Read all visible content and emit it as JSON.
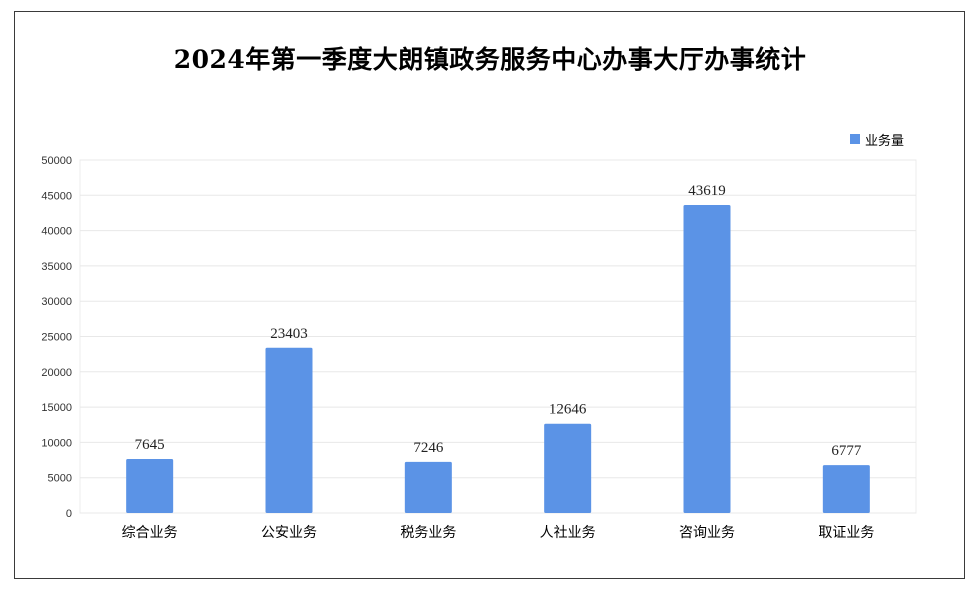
{
  "title": "2024年第一季度大朗镇政务服务中心办事大厅办事统计",
  "legend_label": "业务量",
  "colors": {
    "bar": "#5b93e6",
    "grid": "#e8e8e8",
    "frame": "#3a3a3a"
  },
  "chart_data": {
    "type": "bar",
    "title": "2024年第一季度大朗镇政务服务中心办事大厅办事统计",
    "categories": [
      "综合业务",
      "公安业务",
      "税务业务",
      "人社业务",
      "咨询业务",
      "取证业务"
    ],
    "series": [
      {
        "name": "业务量",
        "values": [
          7645,
          23403,
          7246,
          12646,
          43619,
          6777
        ]
      }
    ],
    "ylim": [
      0,
      50000
    ],
    "yticks": [
      0,
      5000,
      10000,
      15000,
      20000,
      25000,
      30000,
      35000,
      40000,
      45000,
      50000
    ],
    "xlabel": "",
    "ylabel": "",
    "grid": true,
    "legend_position": "top-right",
    "data_labels": true
  }
}
